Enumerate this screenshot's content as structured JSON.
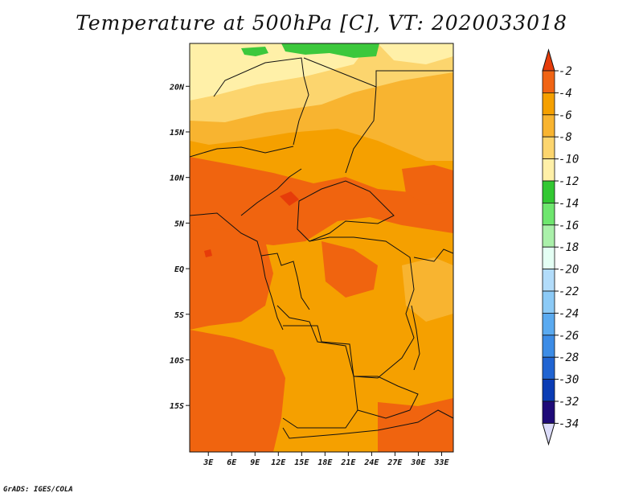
{
  "title": "Temperature at 500hPa [C], VT: 2020033018",
  "credit": "GrADS: IGES/COLA",
  "map": {
    "projection": "latlon",
    "lon_ticks": [
      "3E",
      "6E",
      "9E",
      "12E",
      "15E",
      "18E",
      "21E",
      "24E",
      "27E",
      "30E",
      "33E"
    ],
    "lat_ticks": [
      "20N",
      "15N",
      "10N",
      "5N",
      "EQ",
      "5S",
      "10S",
      "15S"
    ],
    "field": "temperature_500hPa",
    "units": "C"
  },
  "colorbar": {
    "labels": [
      "-2",
      "-4",
      "-6",
      "-8",
      "-10",
      "-12",
      "-14",
      "-16",
      "-18",
      "-20",
      "-22",
      "-24",
      "-26",
      "-28",
      "-30",
      "-32",
      "-34"
    ],
    "colors": [
      "#e63c0a",
      "#f06414",
      "#f5a000",
      "#f8b430",
      "#fcd56e",
      "#fff0a8",
      "#32c832",
      "#6ee66e",
      "#aaf0aa",
      "#e4fff4",
      "#b2dcfa",
      "#8ccaf6",
      "#5aaaf0",
      "#3c8ce6",
      "#2064d2",
      "#0a3cb4",
      "#1e0a78",
      "#dcdcfa"
    ]
  },
  "colors": {
    "warmest": "#e8500c",
    "warm": "#f0640f",
    "mid": "#f5a000",
    "cool": "#fcd56e",
    "coolest": "#fff0a8",
    "green": "#3cc83c"
  }
}
